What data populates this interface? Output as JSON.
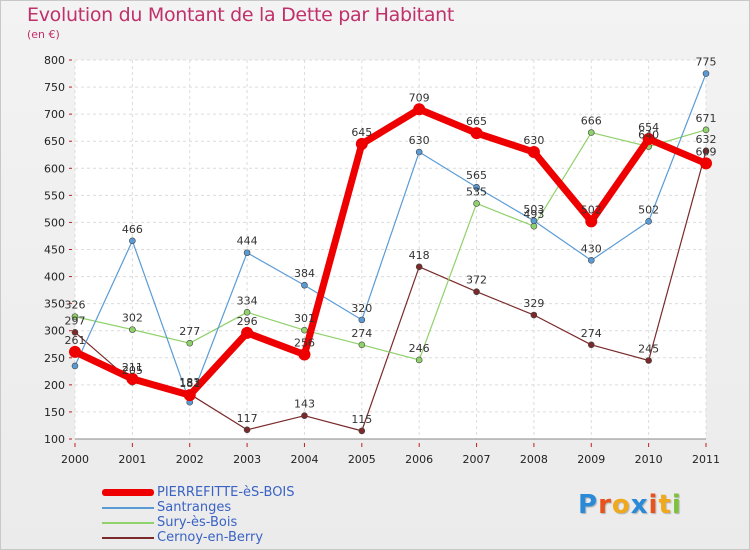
{
  "title": "Evolution du Montant de la Dette par Habitant",
  "subtitle": "(en €)",
  "logo": {
    "text": "Proxiti",
    "letters": [
      "P",
      "r",
      "o",
      "x",
      "i",
      "t",
      "i"
    ],
    "colors": [
      "#2a8ad8",
      "#e8521c",
      "#f0a81c",
      "#2a8ad8",
      "#e8521c",
      "#f0a81c",
      "#7cc23a"
    ]
  },
  "chart_data": {
    "type": "line",
    "title": "Evolution du Montant de la Dette par Habitant",
    "ylabel": "(en €)",
    "xlabel": "",
    "x": [
      "2000",
      "2001",
      "2002",
      "2003",
      "2004",
      "2005",
      "2006",
      "2007",
      "2008",
      "2009",
      "2010",
      "2011"
    ],
    "ylim": [
      100,
      800
    ],
    "yticks": [
      "100",
      "150",
      "200",
      "250",
      "300",
      "350",
      "400",
      "450",
      "500",
      "550",
      "600",
      "650",
      "700",
      "750",
      "800"
    ],
    "grid": true,
    "legend_position": "bottom-left",
    "series": [
      {
        "name": "PIERREFITTE-èS-BOIS",
        "color": "#ee0000",
        "width": 7,
        "values": [
          261,
          211,
          181,
          296,
          256,
          645,
          709,
          665,
          630,
          502,
          654,
          609
        ]
      },
      {
        "name": "Santranges",
        "color": "#5b9bd5",
        "width": 1.2,
        "values": [
          235,
          466,
          168,
          444,
          384,
          320,
          630,
          565,
          503,
          430,
          502,
          775
        ]
      },
      {
        "name": "Sury-ès-Bois",
        "color": "#8fd16a",
        "width": 1.2,
        "values": [
          326,
          302,
          277,
          334,
          301,
          274,
          246,
          535,
          493,
          666,
          640,
          671
        ]
      },
      {
        "name": "Cernoy-en-Berry",
        "color": "#7a2a2a",
        "width": 1.2,
        "values": [
          297,
          205,
          183,
          117,
          143,
          115,
          418,
          372,
          329,
          274,
          245,
          632
        ]
      }
    ],
    "data_labels": [
      [
        "261",
        "211",
        "181",
        "296",
        "256",
        "645",
        "709",
        "665",
        "630",
        "502",
        "654",
        "609"
      ],
      [
        "",
        "466",
        "",
        "444",
        "384",
        "320",
        "630",
        "565",
        "503",
        "430",
        "502",
        "775"
      ],
      [
        "326",
        "302",
        "277",
        "334",
        "301",
        "274",
        "246",
        "535",
        "493",
        "666",
        "640",
        "671"
      ],
      [
        "297",
        "205",
        "183",
        "117",
        "143",
        "115",
        "418",
        "372",
        "329",
        "274",
        "245",
        "632"
      ]
    ]
  }
}
